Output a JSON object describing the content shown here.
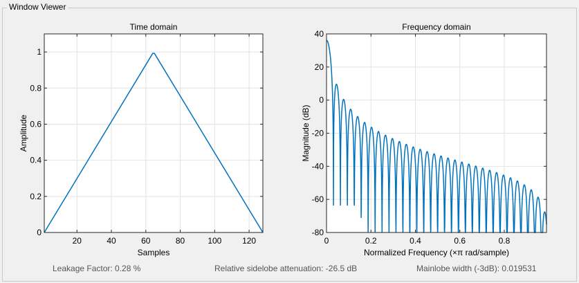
{
  "window": {
    "title": "Window Viewer"
  },
  "colors": {
    "line": "#0072bd",
    "grid": "#e3e3e3",
    "axis": "#262626",
    "plot_bg": "#ffffff"
  },
  "stats": {
    "leakage": "Leakage Factor: 0.28 %",
    "sidelobe": "Relative sidelobe attenuation: -26.5 dB",
    "mainlobe": "Mainlobe width (-3dB): 0.019531"
  },
  "chart_data": [
    {
      "type": "line",
      "title": "Time domain",
      "xlabel": "Samples",
      "ylabel": "Amplitude",
      "xlim": [
        1,
        128
      ],
      "ylim": [
        0,
        1.1
      ],
      "xticks": [
        20,
        40,
        60,
        80,
        100,
        120
      ],
      "yticks": [
        0,
        0.2,
        0.4,
        0.6,
        0.8,
        1
      ],
      "xtick_labels": [
        "20",
        "40",
        "60",
        "80",
        "100",
        "120"
      ],
      "ytick_labels": [
        "0",
        "0.2",
        "0.4",
        "0.6",
        "0.8",
        "1"
      ],
      "grid": true,
      "series": [
        {
          "x": [
            1,
            64,
            65,
            128
          ],
          "y": [
            0,
            0.992,
            0.992,
            0
          ]
        }
      ]
    },
    {
      "type": "line",
      "title": "Frequency domain",
      "xlabel": "Normalized Frequency  (×π rad/sample)",
      "ylabel": "Magnitude (dB)",
      "xlim": [
        0,
        0.99
      ],
      "ylim": [
        -80,
        40
      ],
      "xticks": [
        0,
        0.2,
        0.4,
        0.6,
        0.8
      ],
      "yticks": [
        -80,
        -60,
        -40,
        -20,
        0,
        20,
        40
      ],
      "xtick_labels": [
        "0",
        "0.2",
        "0.4",
        "0.6",
        "0.8"
      ],
      "ytick_labels": [
        "-80",
        "-60",
        "-40",
        "-20",
        "0",
        "20",
        "40"
      ],
      "grid": true,
      "series": [
        {
          "function": "20*log10(|sum of triangular window samples * e^(-j*pi*f*n)|)",
          "n_samples": 128
        }
      ]
    }
  ]
}
